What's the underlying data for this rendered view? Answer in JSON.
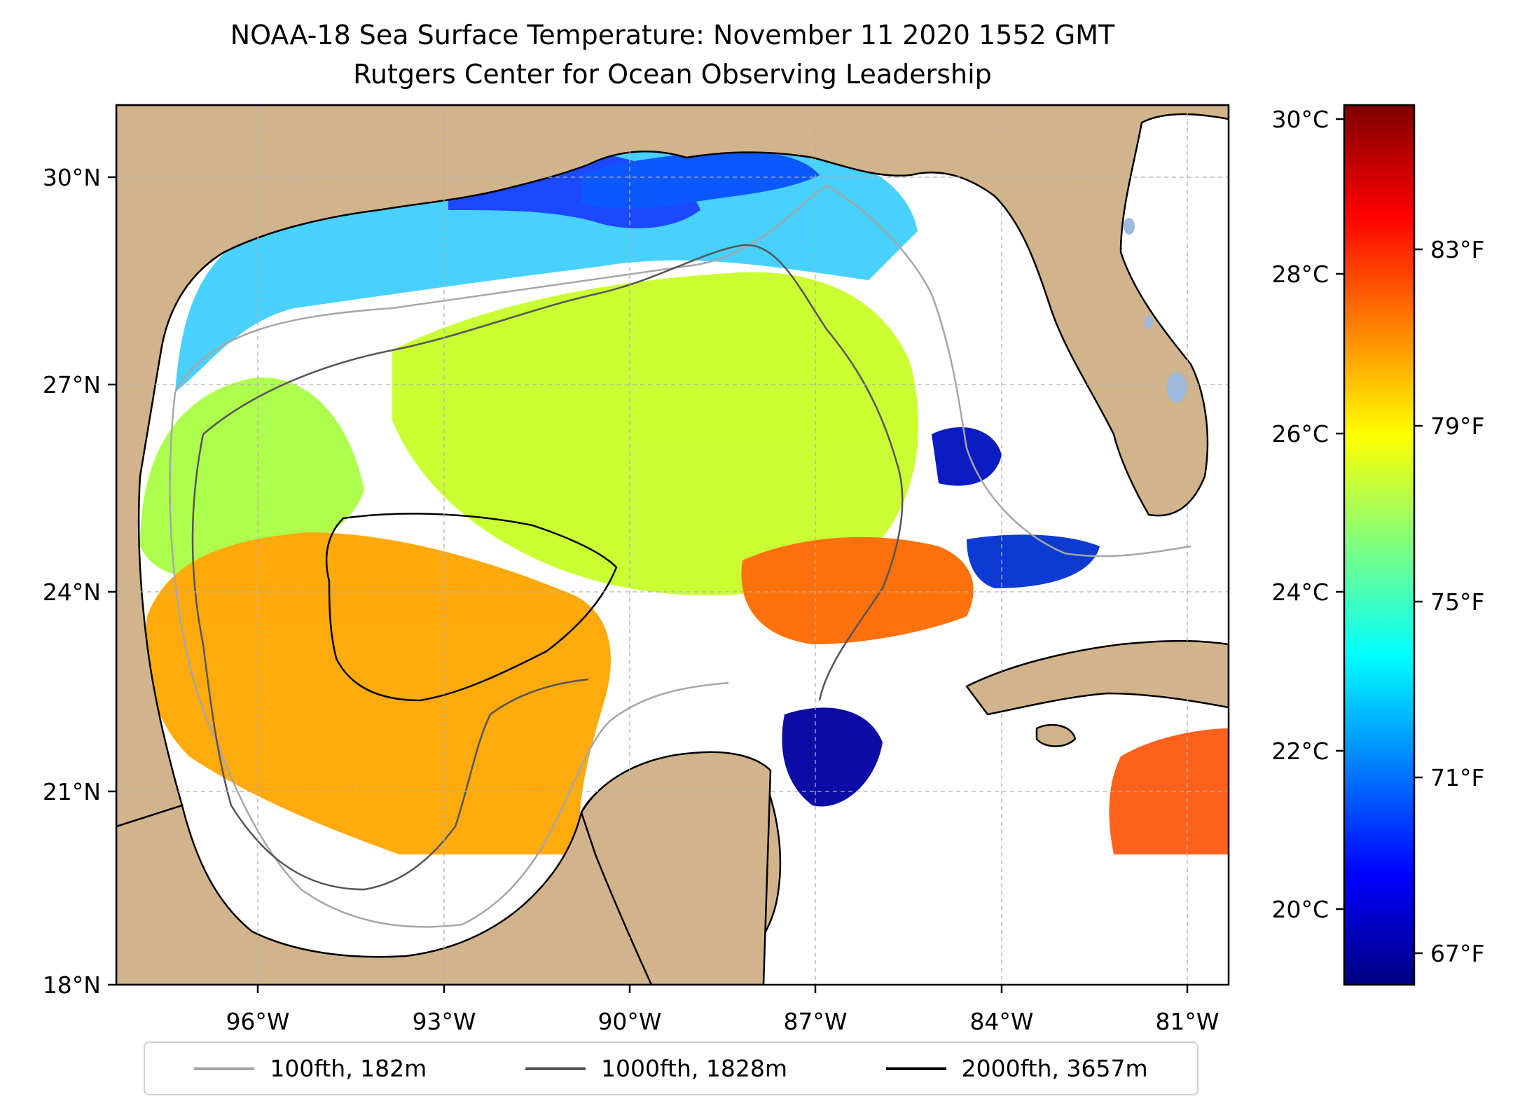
{
  "title": "NOAA-18 Sea Surface Temperature: November 11 2020 1552 GMT",
  "subtitle": "Rutgers Center for Ocean Observing Leadership",
  "axes": {
    "lon_ticks": [
      "96°W",
      "93°W",
      "90°W",
      "87°W",
      "84°W",
      "81°W"
    ],
    "lat_ticks": [
      "30°N",
      "27°N",
      "24°N",
      "21°N",
      "18°N"
    ]
  },
  "colorbar": {
    "celsius_ticks": [
      "30°C",
      "28°C",
      "26°C",
      "24°C",
      "22°C",
      "20°C"
    ],
    "fahrenheit_ticks": [
      "83°F",
      "79°F",
      "75°F",
      "71°F",
      "67°F"
    ],
    "colormap": "jet"
  },
  "legend": [
    {
      "label": "100fth, 182m",
      "color": "#a6a6a6"
    },
    {
      "label": "1000fth, 1828m",
      "color": "#555555"
    },
    {
      "label": "2000fth, 3657m",
      "color": "#000000"
    }
  ],
  "colors": {
    "land": "#d2b48c",
    "lakes": "#9db9dc",
    "gridlines": "#b0b0b0"
  }
}
